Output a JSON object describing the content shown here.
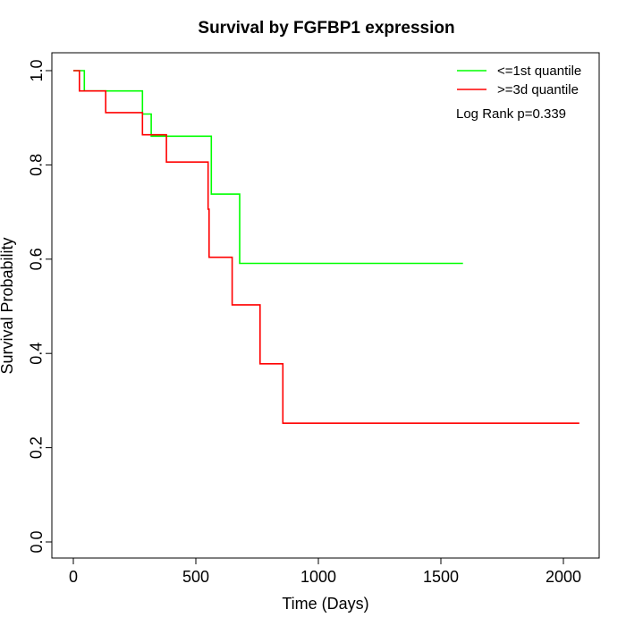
{
  "chart_data": {
    "type": "line",
    "subtype": "kaplan-meier step",
    "title": "Survival by FGFBP1 expression",
    "xlabel": "Time (Days)",
    "ylabel": "Survival Probability",
    "xlim": [
      0,
      2070
    ],
    "ylim": [
      0,
      1
    ],
    "x_ticks": [
      0,
      500,
      1000,
      1500,
      2000
    ],
    "x_tick_labels": [
      "0",
      "500",
      "1000",
      "1500",
      "2000"
    ],
    "y_ticks": [
      0,
      0.2,
      0.4,
      0.6,
      0.8,
      1.0
    ],
    "y_tick_labels": [
      "0.0",
      "0.2",
      "0.4",
      "0.6",
      "0.8",
      "1.0"
    ],
    "grid": false,
    "legend_position": "top-right",
    "annotation": "Log Rank p=0.339",
    "series": [
      {
        "name": "<=1st quantile",
        "color": "#00ff00",
        "points": [
          [
            0,
            1.0
          ],
          [
            45,
            1.0
          ],
          [
            45,
            0.957
          ],
          [
            282,
            0.957
          ],
          [
            282,
            0.908
          ],
          [
            318,
            0.908
          ],
          [
            318,
            0.861
          ],
          [
            563,
            0.861
          ],
          [
            563,
            0.738
          ],
          [
            679,
            0.738
          ],
          [
            679,
            0.591
          ],
          [
            1590,
            0.591
          ]
        ]
      },
      {
        "name": ">=3d quantile",
        "color": "#ff0000",
        "points": [
          [
            0,
            1.0
          ],
          [
            25,
            1.0
          ],
          [
            25,
            0.957
          ],
          [
            132,
            0.957
          ],
          [
            132,
            0.911
          ],
          [
            282,
            0.911
          ],
          [
            282,
            0.864
          ],
          [
            380,
            0.864
          ],
          [
            380,
            0.806
          ],
          [
            550,
            0.806
          ],
          [
            550,
            0.706
          ],
          [
            554,
            0.706
          ],
          [
            554,
            0.604
          ],
          [
            648,
            0.604
          ],
          [
            648,
            0.503
          ],
          [
            762,
            0.503
          ],
          [
            762,
            0.378
          ],
          [
            855,
            0.378
          ],
          [
            855,
            0.252
          ],
          [
            2065,
            0.252
          ]
        ]
      }
    ]
  }
}
